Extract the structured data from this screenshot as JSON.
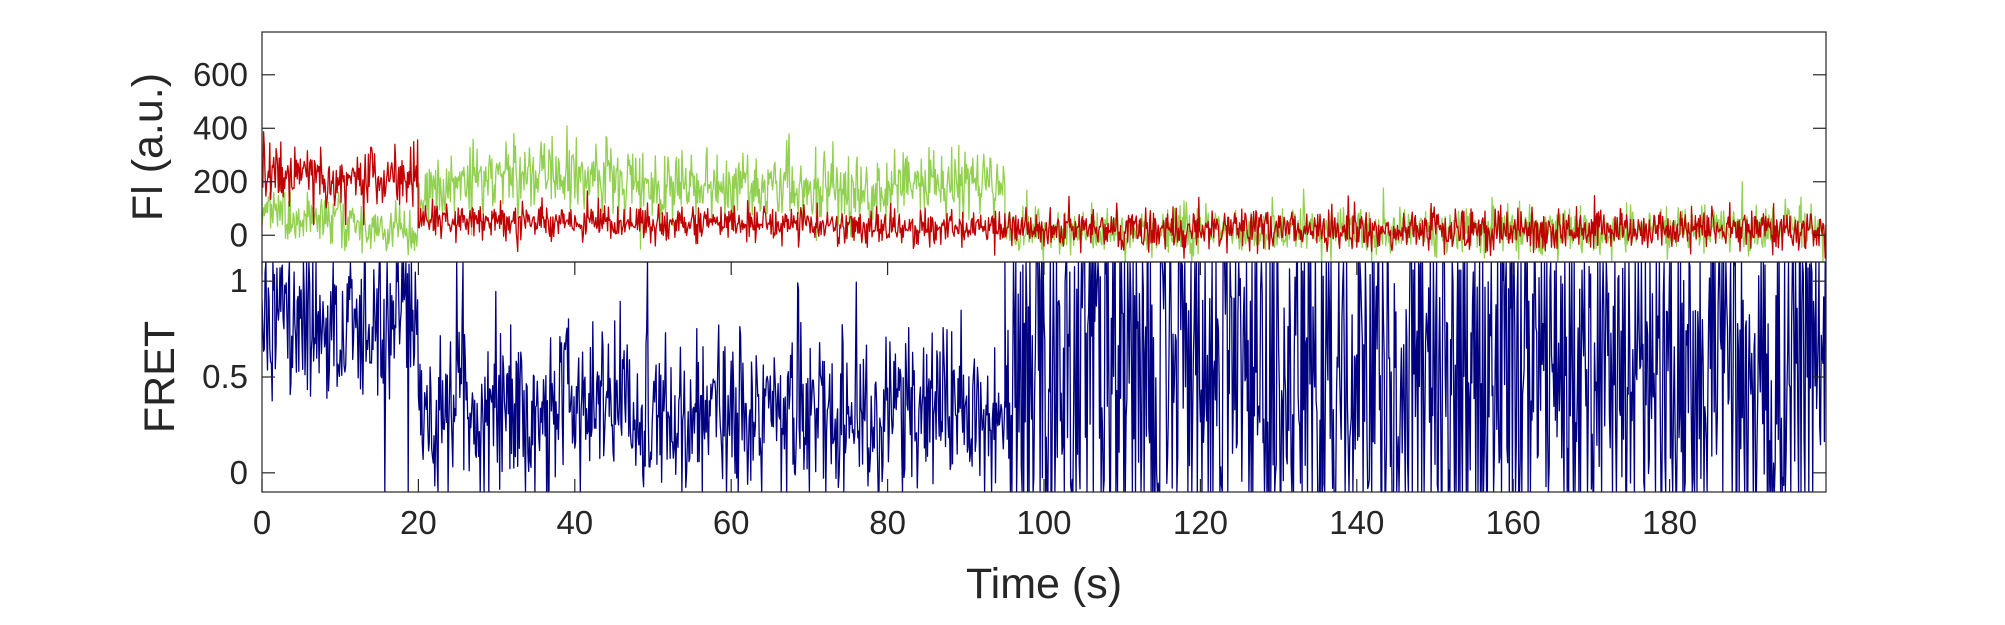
{
  "chart_data": [
    {
      "panel": "top",
      "type": "line",
      "ylabel": "Fl (a.u.)",
      "xlim": [
        0,
        200
      ],
      "ylim": [
        -100,
        760
      ],
      "yticks": [
        0,
        200,
        400,
        600
      ],
      "ytick_labels": [
        "0",
        "200",
        "400",
        "600"
      ],
      "grid": false,
      "x_shared_with_bottom_panel": true,
      "series": [
        {
          "color": "#92d050",
          "sampling_interval_s": 0.1,
          "segments": [
            {
              "x_start": 0,
              "x_end": 20,
              "y_start": 90,
              "y_end": 10,
              "noise_sd": 50,
              "max": 160,
              "min": -90
            },
            {
              "x_start": 20,
              "x_end": 32,
              "y_start": 160,
              "y_end": 230,
              "noise_sd": 65,
              "max": 460,
              "min": -60
            },
            {
              "x_start": 32,
              "x_end": 48,
              "y_start": 230,
              "y_end": 200,
              "noise_sd": 70,
              "max": 600,
              "min": -40
            },
            {
              "x_start": 48,
              "x_end": 80,
              "y_start": 190,
              "y_end": 170,
              "noise_sd": 70,
              "max": 470,
              "min": -60
            },
            {
              "x_start": 80,
              "x_end": 95,
              "y_start": 185,
              "y_end": 210,
              "noise_sd": 70,
              "max": 470,
              "min": -60
            },
            {
              "x_start": 95,
              "x_end": 200,
              "y_start": 15,
              "y_end": 20,
              "noise_sd": 45,
              "max": 200,
              "min": -100
            }
          ]
        },
        {
          "color": "#c00000",
          "sampling_interval_s": 0.1,
          "segments": [
            {
              "x_start": 0,
              "x_end": 20,
              "y_start": 220,
              "y_end": 200,
              "noise_sd": 55,
              "max": 410,
              "min": 40
            },
            {
              "x_start": 20,
              "x_end": 95,
              "y_start": 60,
              "y_end": 25,
              "noise_sd": 35,
              "max": 190,
              "min": -80
            },
            {
              "x_start": 95,
              "x_end": 200,
              "y_start": 25,
              "y_end": 20,
              "noise_sd": 38,
              "max": 200,
              "min": -95
            }
          ]
        }
      ]
    },
    {
      "panel": "bottom",
      "type": "line",
      "xlabel": "Time (s)",
      "ylabel": "FRET",
      "xlim": [
        0,
        200
      ],
      "ylim": [
        -0.1,
        1.1
      ],
      "xticks": [
        0,
        20,
        40,
        60,
        80,
        100,
        120,
        140,
        160,
        180
      ],
      "xtick_labels": [
        "0",
        "20",
        "40",
        "60",
        "80",
        "100",
        "120",
        "140",
        "160",
        "180"
      ],
      "yticks": [
        0,
        0.5,
        1
      ],
      "ytick_labels": [
        "0",
        "0.5",
        "1"
      ],
      "grid": false,
      "series": [
        {
          "color": "#000080",
          "sampling_interval_s": 0.1,
          "clip_to_ylim": true,
          "segments": [
            {
              "x_start": 0,
              "x_end": 20,
              "y_start": 0.75,
              "y_end": 0.8,
              "noise_sd": 0.2,
              "spike_probability": 0.02
            },
            {
              "x_start": 20,
              "x_end": 95,
              "y_start": 0.35,
              "y_end": 0.3,
              "noise_sd": 0.22,
              "spike_probability": 0.012
            },
            {
              "x_start": 95,
              "x_end": 200,
              "y_start": 0.5,
              "y_end": 0.5,
              "noise_sd": 0.55,
              "spike_probability": 0.12
            }
          ]
        }
      ]
    }
  ]
}
